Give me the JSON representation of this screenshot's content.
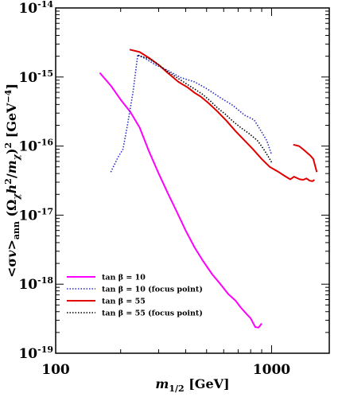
{
  "chart_data": {
    "type": "line",
    "xscale": "log",
    "yscale": "log",
    "xlim": [
      100,
      1850
    ],
    "ylim": [
      1e-19,
      1e-14
    ],
    "xlabel": "m1/2 [GeV]",
    "ylabel": "<σv>ann (Ωχh²/mχ)² [GeV⁻⁴]",
    "grid": false,
    "legend_position": "bottom-left",
    "x_ticks": [
      {
        "value": 100,
        "label": "100"
      },
      {
        "value": 1000,
        "label": "1000"
      }
    ],
    "y_ticks": [
      {
        "value": 1e-14,
        "base": "10",
        "exp": "-14"
      },
      {
        "value": 1e-15,
        "base": "10",
        "exp": "-15"
      },
      {
        "value": 1e-16,
        "base": "10",
        "exp": "-16"
      },
      {
        "value": 1e-17,
        "base": "10",
        "exp": "-17"
      },
      {
        "value": 1e-18,
        "base": "10",
        "exp": "-18"
      },
      {
        "value": 1e-19,
        "base": "10",
        "exp": "-19"
      }
    ],
    "series": [
      {
        "name": "tan β = 10",
        "color": "#ff00ff",
        "style": "solid",
        "x": [
          160,
          180,
          200,
          222,
          245,
          270,
          300,
          330,
          360,
          400,
          440,
          480,
          530,
          580,
          630,
          680,
          720,
          760,
          800,
          840,
          870,
          900
        ],
        "y": [
          1.15e-15,
          7.5e-16,
          4.7e-16,
          3.1e-16,
          1.85e-16,
          8.5e-17,
          4e-17,
          2.1e-17,
          1.2e-17,
          6e-18,
          3.4e-18,
          2.2e-18,
          1.4e-18,
          1e-18,
          7.2e-19,
          5.8e-19,
          4.6e-19,
          3.8e-19,
          3.2e-19,
          2.4e-19,
          2.35e-19,
          2.7e-19
        ]
      },
      {
        "name": "tan β = 10 (focus point)",
        "color": "#2a2ac8",
        "style": "dotted",
        "x": [
          180,
          195,
          205,
          215,
          228,
          240,
          260,
          290,
          330,
          380,
          440,
          500,
          580,
          660,
          750,
          830,
          900,
          950,
          1000
        ],
        "y": [
          4.2e-17,
          7e-17,
          9e-17,
          2e-16,
          6e-16,
          2.1e-15,
          1.85e-15,
          1.5e-15,
          1.25e-15,
          9.8e-16,
          8.5e-16,
          6.8e-16,
          5e-16,
          3.9e-16,
          2.8e-16,
          2.4e-16,
          1.6e-16,
          1.2e-16,
          7.5e-17
        ]
      },
      {
        "name": "tan β = 55",
        "color": "#e00000",
        "style": "solid",
        "segments": [
          {
            "x": [
              220,
              245,
              270,
              300,
              330,
              370,
              410,
              440,
              470,
              510,
              560,
              620,
              680,
              750,
              820,
              900,
              980,
              1080,
              1150,
              1220,
              1270,
              1350,
              1400,
              1450,
              1500,
              1550,
              1580
            ],
            "y": [
              2.5e-15,
              2.3e-15,
              1.9e-15,
              1.5e-15,
              1.15e-15,
              8.5e-16,
              7e-16,
              5.9e-16,
              5.2e-16,
              4.2e-16,
              3.2e-16,
              2.3e-16,
              1.65e-16,
              1.2e-16,
              9e-17,
              6.5e-17,
              5e-17,
              4.2e-17,
              3.7e-17,
              3.3e-17,
              3.6e-17,
              3.3e-17,
              3.25e-17,
              3.4e-17,
              3.15e-17,
              3.1e-17,
              3.25e-17
            ]
          },
          {
            "x": [
              1260,
              1340,
              1400,
              1460,
              1510,
              1560,
              1620
            ],
            "y": [
              1.05e-16,
              1e-16,
              9e-17,
              8e-17,
              7.3e-17,
              6.5e-17,
              4.2e-17
            ]
          }
        ]
      },
      {
        "name": "tan β = 55 (focus point)",
        "color": "#000000",
        "style": "dotted",
        "x": [
          240,
          270,
          300,
          330,
          370,
          410,
          440,
          480,
          520,
          560,
          610,
          660,
          720,
          790,
          860,
          920,
          980,
          1000
        ],
        "y": [
          2.05e-15,
          1.85e-15,
          1.5e-15,
          1.2e-15,
          9.5e-16,
          7.7e-16,
          6.7e-16,
          5.6e-16,
          4.5e-16,
          3.6e-16,
          2.9e-16,
          2.3e-16,
          1.85e-16,
          1.5e-16,
          1.2e-16,
          9e-17,
          6.5e-17,
          5.8e-17
        ]
      }
    ]
  },
  "legend": [
    {
      "label": "tan β = 10",
      "color": "#ff00ff",
      "dash": ""
    },
    {
      "label": "tan β = 10 (focus point)",
      "color": "#2a2ac8",
      "dash": "1.5,2"
    },
    {
      "label": "tan β = 55",
      "color": "#e00000",
      "dash": ""
    },
    {
      "label": "tan β = 55 (focus point)",
      "color": "#000000",
      "dash": "1.5,2"
    }
  ]
}
